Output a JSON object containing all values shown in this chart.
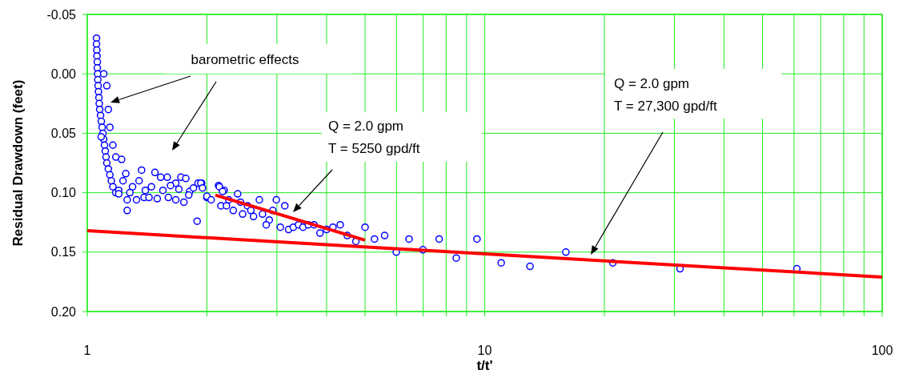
{
  "chart_data": {
    "type": "scatter",
    "xlabel": "t/t'",
    "ylabel": "Residual Drawdown (feet)",
    "log": "x",
    "grid": true,
    "xlim": [
      1,
      100
    ],
    "ylim": [
      0.2,
      -0.05
    ],
    "xticks": [
      1,
      {
        "value": 2,
        "label": null
      },
      {
        "value": 3,
        "label": null
      },
      {
        "value": 4,
        "label": null
      },
      {
        "value": 5,
        "label": null
      },
      {
        "value": 6,
        "label": null
      },
      {
        "value": 7,
        "label": null
      },
      {
        "value": 8,
        "label": null
      },
      {
        "value": 9,
        "label": null
      },
      10,
      {
        "value": 20,
        "label": null
      },
      {
        "value": 30,
        "label": null
      },
      {
        "value": 40,
        "label": null
      },
      {
        "value": 50,
        "label": null
      },
      {
        "value": 60,
        "label": null
      },
      {
        "value": 70,
        "label": null
      },
      {
        "value": 80,
        "label": null
      },
      {
        "value": 90,
        "label": null
      },
      100
    ],
    "yticks": [
      {
        "value": -0.05,
        "label": "-0.05"
      },
      {
        "value": 0,
        "label": "0.00"
      },
      {
        "value": 0.05,
        "label": "0.05"
      },
      {
        "value": 0.1,
        "label": "0.10"
      },
      {
        "value": 0.15,
        "label": "0.15"
      },
      {
        "value": 0.2,
        "label": "0.20"
      }
    ],
    "annotations": [
      "barometric effects",
      "Q = 2.0 gpm\nT = 5250 gpd/ft",
      "Q = 2.0 gpm\nT = 27,300 gpd/ft"
    ],
    "series": [
      {
        "color": "#0000ff",
        "marker": "circle",
        "x": [
          1.055,
          1.055,
          1.057,
          1.058,
          1.06,
          1.06,
          1.062,
          1.063,
          1.065,
          1.067,
          1.07,
          1.072,
          1.075,
          1.08,
          1.085,
          1.09,
          1.095,
          1.1,
          1.105,
          1.11,
          1.115,
          1.12,
          1.13,
          1.14,
          1.15,
          1.16,
          1.18,
          1.2,
          1.084,
          1.1,
          1.12,
          1.13,
          1.14,
          1.16,
          1.18,
          1.22,
          1.25,
          1.2,
          1.26,
          1.33,
          1.37,
          1.39,
          1.43,
          1.48,
          1.5,
          1.53,
          1.59,
          1.6,
          1.67,
          1.67,
          1.72,
          1.75,
          1.77,
          1.81,
          1.9,
          1.94,
          2.0,
          2.14,
          2.21,
          1.26,
          1.89,
          1.3,
          1.35,
          1.45,
          1.55,
          1.62,
          1.7,
          1.8,
          1.85,
          1.28,
          1.23,
          1.4,
          1.93,
          1.95,
          2.0,
          2.05,
          2.15,
          2.19,
          2.17,
          2.24,
          2.27,
          2.33,
          2.43,
          2.46,
          2.53,
          2.58,
          2.62,
          2.76,
          2.87,
          2.93,
          2.39,
          2.71,
          2.82,
          2.99,
          3.06,
          3.14,
          3.21,
          3.3,
          3.4,
          3.49,
          3.6,
          3.72,
          3.85,
          4.0,
          4.15,
          4.33,
          4.51,
          4.74,
          5.0,
          5.28,
          5.6,
          5.99,
          6.45,
          6.99,
          7.68,
          8.48,
          9.56,
          11.0,
          13.0,
          16.0,
          21.0,
          31.0,
          61.0
        ],
        "values": [
          -0.03,
          -0.025,
          -0.02,
          -0.015,
          -0.01,
          -0.005,
          0.0,
          0.005,
          0.01,
          0.015,
          0.02,
          0.025,
          0.03,
          0.035,
          0.04,
          0.045,
          0.05,
          0.055,
          0.06,
          0.065,
          0.07,
          0.075,
          0.08,
          0.085,
          0.09,
          0.095,
          0.1,
          0.098,
          0.053,
          0.0,
          0.01,
          0.03,
          0.045,
          0.06,
          0.07,
          0.072,
          0.084,
          0.101,
          0.106,
          0.106,
          0.081,
          0.104,
          0.104,
          0.083,
          0.105,
          0.087,
          0.087,
          0.104,
          0.092,
          0.106,
          0.087,
          0.108,
          0.088,
          0.099,
          0.092,
          0.092,
          0.104,
          0.094,
          0.098,
          0.115,
          0.124,
          0.095,
          0.09,
          0.095,
          0.098,
          0.094,
          0.097,
          0.102,
          0.096,
          0.1,
          0.09,
          0.098,
          0.092,
          0.096,
          0.103,
          0.106,
          0.095,
          0.099,
          0.111,
          0.111,
          0.106,
          0.115,
          0.108,
          0.118,
          0.111,
          0.115,
          0.12,
          0.118,
          0.123,
          0.115,
          0.101,
          0.106,
          0.127,
          0.106,
          0.129,
          0.111,
          0.131,
          0.129,
          0.127,
          0.129,
          0.127,
          0.127,
          0.134,
          0.131,
          0.129,
          0.127,
          0.136,
          0.141,
          0.129,
          0.139,
          0.136,
          0.15,
          0.139,
          0.148,
          0.139,
          0.155,
          0.139,
          0.159,
          0.162,
          0.15,
          0.159,
          0.164,
          0.164
        ]
      },
      {
        "type": "line",
        "color": "#ff0000",
        "x": [
          1,
          100
        ],
        "values": [
          0.132,
          0.171
        ]
      },
      {
        "type": "line",
        "color": "#ff0000",
        "x": [
          2.1,
          5.0
        ],
        "values": [
          0.102,
          0.14
        ]
      }
    ]
  }
}
